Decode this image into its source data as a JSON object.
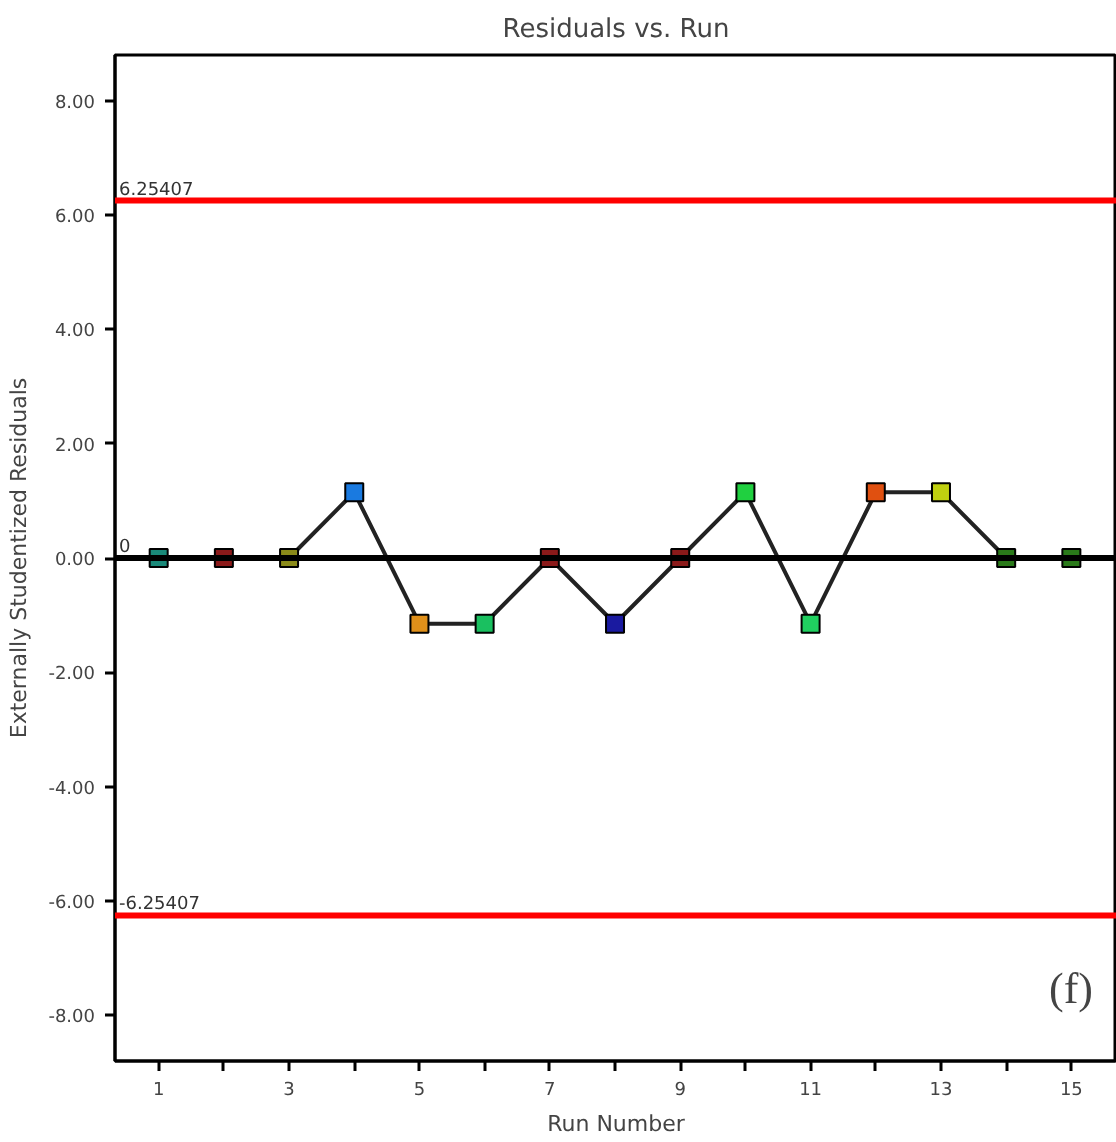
{
  "chart_data": {
    "type": "line",
    "title": "Residuals vs. Run",
    "xlabel": "Run Number",
    "ylabel": "Externally Studentized Residuals",
    "x": [
      1,
      2,
      3,
      4,
      5,
      6,
      7,
      8,
      9,
      10,
      11,
      12,
      13,
      14,
      15
    ],
    "series": [
      {
        "color": "#222222",
        "values": [
          0,
          0,
          0,
          1.15,
          -1.15,
          -1.15,
          0,
          -1.15,
          0,
          1.15,
          -1.15,
          1.15,
          1.15,
          0,
          0
        ],
        "colors": [
          "#1a8a7a",
          "#8b1a1a",
          "#8b8b1a",
          "#1a7ae0",
          "#e0901a",
          "#1ac060",
          "#8b1a1a",
          "#1a1aa0",
          "#8b1a1a",
          "#20d040",
          "#20d060",
          "#e05010",
          "#c0d010",
          "#2a7a1a",
          "#2a7a1a"
        ]
      }
    ],
    "marker": "square",
    "xlim": [
      0.33,
      15.7
    ],
    "xticks": [
      1,
      {
        "value": 2,
        "label": null
      },
      3,
      {
        "value": 4,
        "label": null
      },
      5,
      {
        "value": 6,
        "label": null
      },
      7,
      {
        "value": 8,
        "label": null
      },
      9,
      {
        "value": 10,
        "label": null
      },
      11,
      {
        "value": 12,
        "label": null
      },
      13,
      {
        "value": 14,
        "label": null
      },
      15
    ],
    "ylim": [
      -8.8,
      8.8
    ],
    "yticks": [
      {
        "value": -8,
        "label": "-8.00"
      },
      {
        "value": -6,
        "label": "-6.00"
      },
      {
        "value": -4,
        "label": "-4.00"
      },
      {
        "value": -2,
        "label": "-2.00"
      },
      {
        "value": 0,
        "label": "0.00"
      },
      {
        "value": 2,
        "label": "2.00"
      },
      {
        "value": 4,
        "label": "4.00"
      },
      {
        "value": 6,
        "label": "6.00"
      },
      {
        "value": 8,
        "label": "8.00"
      }
    ],
    "ref_lines": [
      {
        "axis": "y",
        "value": 6.25407,
        "label": "6.25407",
        "color": "#ff0000"
      },
      {
        "axis": "y",
        "value": 0,
        "label": "0",
        "color": "#000000"
      },
      {
        "axis": "y",
        "value": -6.25407,
        "label": "-6.25407",
        "color": "#ff0000"
      }
    ],
    "annotations": [
      "(f)"
    ],
    "grid": false
  }
}
